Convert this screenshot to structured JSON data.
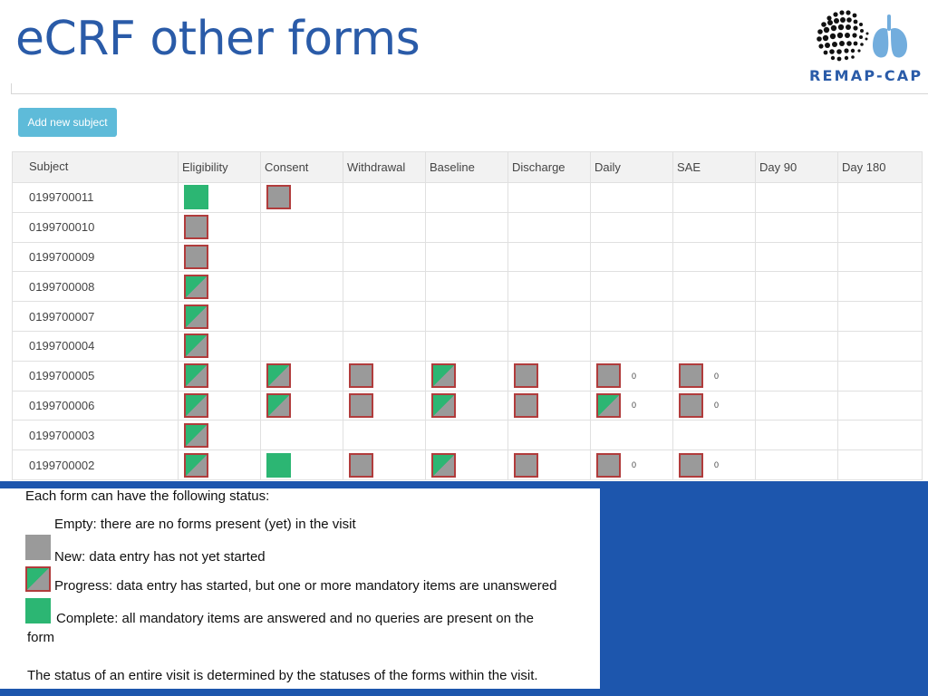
{
  "slide": {
    "title": "eCRF other forms"
  },
  "logo": {
    "text": "REMAP-CAP",
    "icon": "lungs-globe-icon"
  },
  "toolbar": {
    "add_subject_label": "Add new subject"
  },
  "colors": {
    "title": "#2a5ba8",
    "button": "#5ebbd9",
    "complete": "#2cb673",
    "new": "#9a9a9a",
    "border": "#b13c3c",
    "band": "#1d56ad"
  },
  "table": {
    "columns": [
      "Subject",
      "Eligibility",
      "Consent",
      "Withdrawal",
      "Baseline",
      "Discharge",
      "Daily",
      "SAE",
      "Day 90",
      "Day 180"
    ],
    "rows": [
      {
        "subject": "0199700011",
        "cells": [
          {
            "s": "complete"
          },
          {
            "s": "new"
          },
          {},
          {},
          {},
          {},
          {},
          {},
          {}
        ]
      },
      {
        "subject": "0199700010",
        "cells": [
          {
            "s": "new"
          },
          {},
          {},
          {},
          {},
          {},
          {},
          {},
          {}
        ]
      },
      {
        "subject": "0199700009",
        "cells": [
          {
            "s": "new"
          },
          {},
          {},
          {},
          {},
          {},
          {},
          {},
          {}
        ]
      },
      {
        "subject": "0199700008",
        "cells": [
          {
            "s": "progress"
          },
          {},
          {},
          {},
          {},
          {},
          {},
          {},
          {}
        ]
      },
      {
        "subject": "0199700007",
        "cells": [
          {
            "s": "progress"
          },
          {},
          {},
          {},
          {},
          {},
          {},
          {},
          {}
        ]
      },
      {
        "subject": "0199700004",
        "cells": [
          {
            "s": "progress"
          },
          {},
          {},
          {},
          {},
          {},
          {},
          {},
          {}
        ]
      },
      {
        "subject": "0199700005",
        "cells": [
          {
            "s": "progress"
          },
          {
            "s": "progress"
          },
          {
            "s": "new"
          },
          {
            "s": "progress"
          },
          {
            "s": "new"
          },
          {
            "s": "new",
            "n": "0"
          },
          {
            "s": "new",
            "n": "0"
          },
          {},
          {}
        ]
      },
      {
        "subject": "0199700006",
        "cells": [
          {
            "s": "progress"
          },
          {
            "s": "progress"
          },
          {
            "s": "new"
          },
          {
            "s": "progress"
          },
          {
            "s": "new"
          },
          {
            "s": "progress",
            "n": "0"
          },
          {
            "s": "new",
            "n": "0"
          },
          {},
          {}
        ]
      },
      {
        "subject": "0199700003",
        "cells": [
          {
            "s": "progress"
          },
          {},
          {},
          {},
          {},
          {},
          {},
          {},
          {}
        ]
      },
      {
        "subject": "0199700002",
        "cells": [
          {
            "s": "progress"
          },
          {
            "s": "complete"
          },
          {
            "s": "new"
          },
          {
            "s": "progress"
          },
          {
            "s": "new"
          },
          {
            "s": "new",
            "n": "0"
          },
          {
            "s": "new",
            "n": "0"
          },
          {},
          {}
        ]
      }
    ]
  },
  "legend": {
    "intro": "Each form can have the following status:",
    "empty": "Empty: there are no forms present (yet) in the visit",
    "new": "New: data entry has not yet started",
    "progress": "Progress: data entry has started, but one or more mandatory items are unanswered",
    "complete_line1": "Complete: all mandatory items are answered and no queries are present on the",
    "complete_line2": "form",
    "footer": "The status of an entire visit is determined by the statuses of the forms within the visit."
  }
}
